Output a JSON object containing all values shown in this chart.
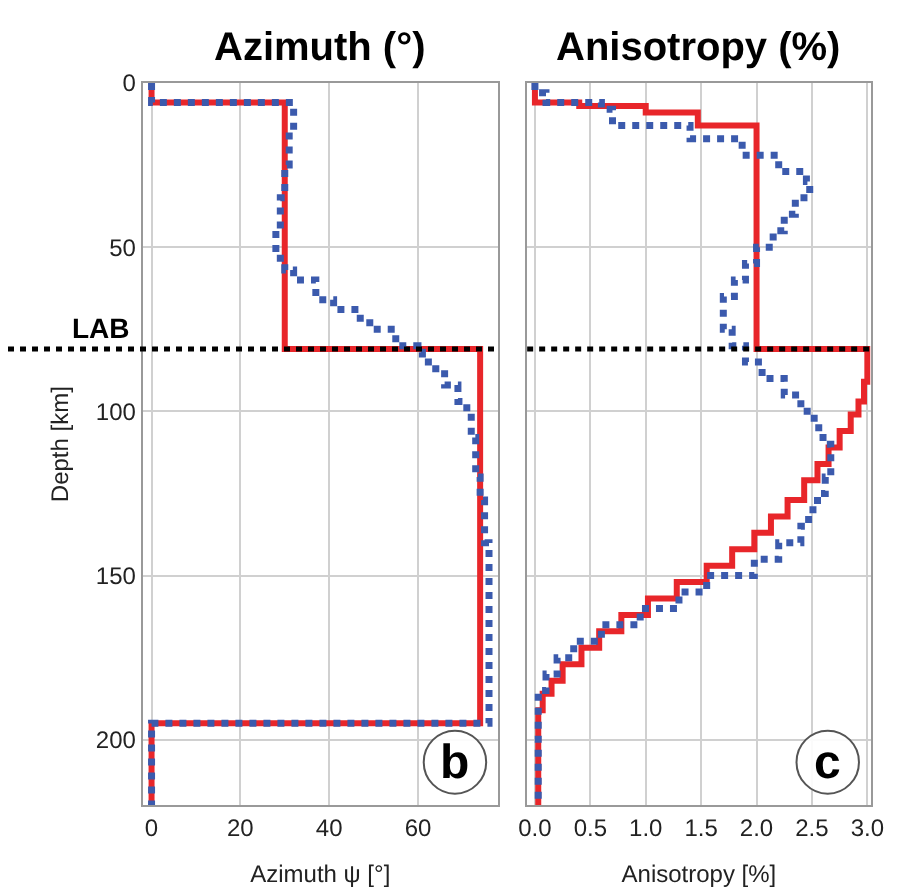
{
  "chart_data": [
    {
      "type": "step",
      "title": "Azimuth (°)",
      "xlabel": "Azimuth ψ [°]",
      "ylabel": "Depth [km]",
      "xlim": [
        -2,
        78
      ],
      "xticks": [
        0,
        20,
        40,
        60
      ],
      "ylim": [
        220,
        0
      ],
      "yticks": [
        0,
        50,
        100,
        150,
        200
      ],
      "grid": true,
      "annotations": [
        "b"
      ],
      "ref_lines": [
        {
          "axis": "y",
          "value": 81,
          "label": "LAB",
          "color": "#000000",
          "line_style": "dotted"
        }
      ],
      "series": [
        {
          "color": "#e8262a",
          "line_style": "solid",
          "x": [
            0,
            30,
            74,
            0,
            0
          ],
          "values": [
            0,
            6,
            81,
            195,
            220
          ]
        },
        {
          "color": "#3b5aad",
          "line_style": "dotted",
          "x": [
            0,
            32,
            31,
            30,
            29,
            28,
            29,
            30,
            32,
            37,
            41,
            47,
            50,
            55,
            60,
            61,
            64,
            66,
            69,
            71,
            72,
            73,
            74,
            75,
            76,
            0,
            0
          ],
          "values": [
            0,
            6,
            15,
            25,
            35,
            45,
            52,
            55,
            57,
            60,
            66,
            69,
            73,
            75,
            80,
            82,
            85,
            87,
            92,
            97,
            100,
            108,
            120,
            127,
            140,
            195,
            220
          ]
        }
      ]
    },
    {
      "type": "step",
      "title": "Anisotropy (%)",
      "xlabel": "Anisotropy [%]",
      "xlim": [
        -0.07,
        3.03
      ],
      "xticks": [
        {
          "value": 0,
          "label": "0.0"
        },
        0.5,
        {
          "value": 1,
          "label": "1.0"
        },
        1.5,
        {
          "value": 2,
          "label": "2.0"
        },
        2.5,
        {
          "value": 3,
          "label": "3.0"
        }
      ],
      "ylim": [
        220,
        0
      ],
      "yticks": [
        0,
        50,
        100,
        150,
        200
      ],
      "grid": true,
      "tick_labels": "x",
      "annotations": [
        "c"
      ],
      "ref_lines": [
        {
          "axis": "y",
          "value": 81,
          "color": "#000000",
          "line_style": "dotted"
        }
      ],
      "series": [
        {
          "color": "#e8262a",
          "line_style": "solid",
          "x": [
            0,
            0.4,
            1.0,
            1.47,
            2.0,
            3.0,
            2.97,
            2.92,
            2.85,
            2.75,
            2.65,
            2.55,
            2.43,
            2.28,
            2.13,
            1.98,
            1.78,
            1.55,
            1.28,
            1.02,
            0.78,
            0.58,
            0.42,
            0.25,
            0.15,
            0.07,
            0.03,
            0.03
          ],
          "values": [
            0,
            6,
            7,
            9,
            13,
            81,
            91,
            97,
            101,
            106,
            111,
            116,
            121,
            127,
            132,
            137,
            142,
            147,
            152,
            157,
            162,
            167,
            172,
            177,
            182,
            186,
            191,
            220
          ]
        },
        {
          "color": "#3b5aad",
          "line_style": "dotted",
          "x": [
            0,
            0.1,
            0.6,
            0.7,
            1.4,
            1.87,
            2.2,
            2.45,
            2.48,
            2.35,
            2.25,
            2.15,
            2.0,
            1.9,
            1.8,
            1.7,
            1.7,
            1.78,
            1.9,
            2.05,
            2.25,
            2.4,
            2.52,
            2.6,
            2.67,
            2.67,
            2.62,
            2.55,
            2.47,
            2.4,
            2.2,
            1.98,
            1.55,
            1.3,
            0.95,
            0.6,
            0.35,
            0.2,
            0.1,
            0.03,
            0.03
          ],
          "values": [
            0,
            3,
            6,
            8,
            13,
            17,
            22,
            27,
            30,
            35,
            40,
            45,
            50,
            55,
            60,
            65,
            70,
            75,
            80,
            85,
            90,
            95,
            100,
            105,
            110,
            115,
            120,
            125,
            130,
            135,
            140,
            145,
            150,
            155,
            160,
            165,
            170,
            175,
            180,
            185,
            220
          ]
        }
      ]
    }
  ]
}
